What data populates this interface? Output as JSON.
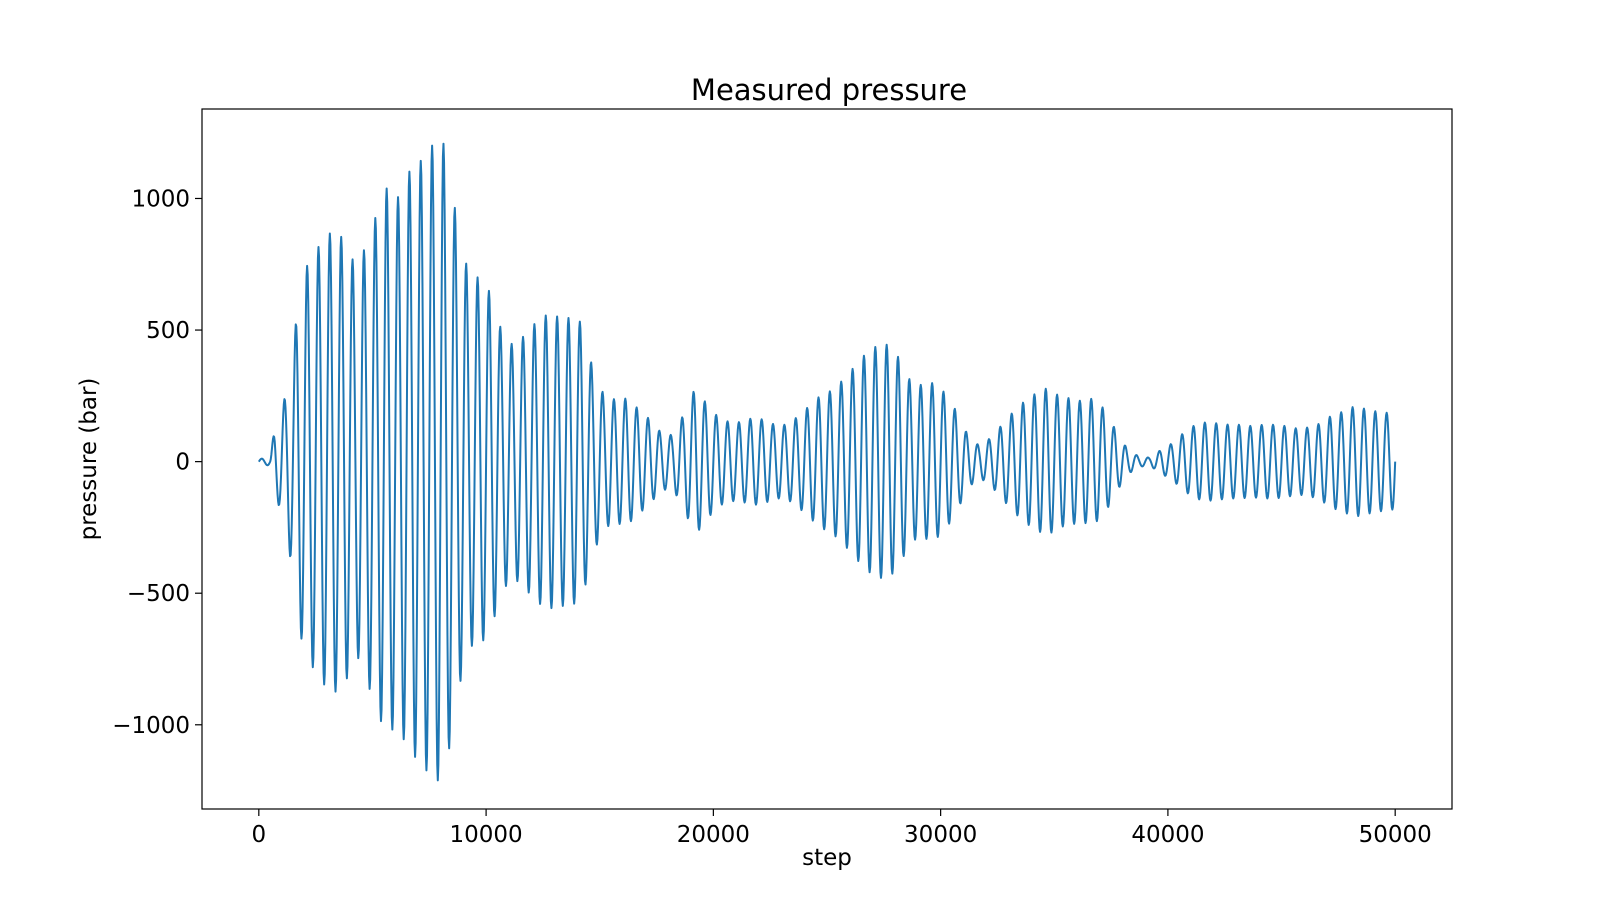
{
  "chart_data": {
    "type": "line",
    "title": "Measured pressure",
    "xlabel": "step",
    "ylabel": "pressure (bar)",
    "xlim": [
      -2500,
      52500
    ],
    "ylim": [
      -1320,
      1340
    ],
    "xticks": [
      0,
      10000,
      20000,
      30000,
      40000,
      50000
    ],
    "xtick_labels": [
      "0",
      "10000",
      "20000",
      "30000",
      "40000",
      "50000"
    ],
    "yticks": [
      -1000,
      -500,
      0,
      500,
      1000
    ],
    "ytick_labels": [
      "−1000",
      "−500",
      "0",
      "500",
      "1000"
    ],
    "grid": false,
    "legend": "none",
    "series": [
      {
        "color": "#1f77b4",
        "oscillation_period_steps": 500,
        "envelope": {
          "x": [
            0,
            500,
            700,
            900,
            1200,
            1500,
            1800,
            2100,
            2500,
            2900,
            3300,
            3800,
            4300,
            4700,
            5100,
            5600,
            6100,
            6600,
            7100,
            7600,
            8100,
            8500,
            8900,
            9300,
            9700,
            10200,
            10700,
            11200,
            11700,
            12200,
            12700,
            13200,
            13700,
            14200,
            14700,
            15200,
            15700,
            16200,
            16700,
            17200,
            17700,
            18200,
            18700,
            19200,
            19700,
            20200,
            20700,
            21200,
            21700,
            22200,
            22700,
            23200,
            23700,
            24200,
            24700,
            25200,
            25700,
            26200,
            26700,
            27200,
            27700,
            28200,
            28700,
            29200,
            29700,
            30200,
            30700,
            31200,
            31700,
            32200,
            32700,
            33200,
            33700,
            34200,
            34700,
            35200,
            35700,
            36200,
            36700,
            37200,
            37700,
            38200,
            38700,
            39200,
            39700,
            40200,
            40700,
            41200,
            41700,
            42200,
            42700,
            43200,
            43700,
            44200,
            44700,
            45200,
            45700,
            46200,
            46700,
            47200,
            47700,
            48200,
            48700,
            49200,
            49700,
            50000
          ],
          "y": [
            10,
            15,
            130,
            170,
            260,
            430,
            650,
            740,
            800,
            850,
            880,
            840,
            730,
            820,
            920,
            1040,
            1000,
            1100,
            1140,
            1200,
            1220,
            1030,
            820,
            700,
            700,
            640,
            490,
            440,
            480,
            530,
            560,
            550,
            545,
            530,
            350,
            250,
            235,
            240,
            200,
            160,
            110,
            100,
            180,
            280,
            220,
            170,
            150,
            150,
            165,
            160,
            140,
            140,
            170,
            210,
            250,
            270,
            310,
            360,
            410,
            440,
            445,
            390,
            300,
            290,
            300,
            260,
            190,
            100,
            60,
            90,
            140,
            190,
            230,
            260,
            280,
            250,
            240,
            230,
            240,
            200,
            120,
            50,
            20,
            15,
            45,
            70,
            110,
            140,
            150,
            145,
            140,
            140,
            135,
            140,
            140,
            135,
            125,
            130,
            145,
            175,
            190,
            210,
            200,
            190,
            185,
            180
          ]
        }
      }
    ]
  }
}
